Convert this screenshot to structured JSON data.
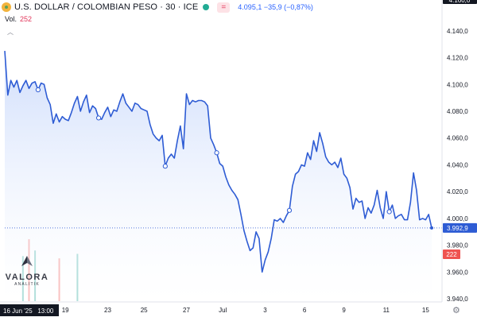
{
  "header": {
    "title": "U.S. DOLLAR / COLOMBIAN PESO · 30 · ICE",
    "mode_button": "=",
    "last_change": "4.095,1  −35,9 (−0,87%)"
  },
  "volume": {
    "label": "Vol.",
    "value": "252"
  },
  "collapse_icon": "chevron-up-icon",
  "logo": {
    "brand": "VALORA",
    "sub": "ANALITIK"
  },
  "badges": {
    "price": "3.992,9",
    "volume": "222",
    "top_partial": "4.160,0",
    "date_badge": "16 Jun '25   13:00"
  },
  "colors": {
    "line": "#2e5cd4",
    "area_top": "#c9d9fb",
    "area_bottom": "#ffffff",
    "volume_up": "#26a69a",
    "volume_down": "#ef5350",
    "price_badge": "#2e5cd4",
    "volume_badge": "#ef5350",
    "date_badge": "#131722"
  },
  "chart_data": {
    "type": "area",
    "title": "U.S. DOLLAR / COLOMBIAN PESO · 30 · ICE",
    "xlabel": "",
    "ylabel": "",
    "x_tick_labels": [
      "19",
      "23",
      "25",
      "27",
      "Jul",
      "3",
      "6",
      "9",
      "11",
      "15"
    ],
    "y_tick_labels": [
      "4.140,0",
      "4.120,0",
      "4.100,0",
      "4.080,0",
      "4.060,0",
      "4.040,0",
      "4.020,0",
      "4.000,0",
      "3.980,0",
      "3.960,0",
      "3.940,0"
    ],
    "y_ticks": [
      4140,
      4120,
      4100,
      4080,
      4060,
      4040,
      4020,
      4000,
      3980,
      3960,
      3940
    ],
    "ylim": [
      3938,
      4163
    ],
    "x_ticks": [
      {
        "label": "19",
        "i": 20
      },
      {
        "label": "23",
        "i": 34
      },
      {
        "label": "25",
        "i": 46
      },
      {
        "label": "27",
        "i": 60
      },
      {
        "label": "Jul",
        "i": 72
      },
      {
        "label": "3",
        "i": 86
      },
      {
        "label": "6",
        "i": 99
      },
      {
        "label": "9",
        "i": 112
      },
      {
        "label": "11",
        "i": 126
      },
      {
        "label": "15",
        "i": 139
      }
    ],
    "n_points": 142,
    "series": [
      {
        "values": [
          4125,
          4092,
          4103,
          4098,
          4103,
          4094,
          4099,
          4103,
          4097,
          4101,
          4102,
          4096,
          4101,
          4100,
          4090,
          4085,
          4071,
          4078,
          4072,
          4076,
          4074,
          4073,
          4079,
          4086,
          4091,
          4080,
          4087,
          4092,
          4079,
          4084,
          4082,
          4075,
          4074,
          4079,
          4083,
          4076,
          4081,
          4080,
          4087,
          4093,
          4086,
          4083,
          4080,
          4086,
          4085,
          4082,
          4081,
          4080,
          4070,
          4063,
          4060,
          4058,
          4062,
          4039,
          4045,
          4048,
          4045,
          4058,
          4069,
          4052,
          4093,
          4085,
          4088,
          4087,
          4088,
          4088,
          4087,
          4084,
          4060,
          4055,
          4049,
          4041,
          4039,
          4031,
          4025,
          4021,
          4018,
          4014,
          4003,
          3991,
          3983,
          3976,
          3978,
          3990,
          3985,
          3960,
          3969,
          3975,
          3985,
          3999,
          3998,
          4000,
          3997,
          4002,
          4006,
          4024,
          4033,
          4035,
          4040,
          4039,
          4049,
          4044,
          4058,
          4050,
          4064,
          4056,
          4046,
          4042,
          4040,
          4042,
          4038,
          4045,
          4033,
          4030,
          4023,
          4007,
          4015,
          4012,
          4013,
          4000,
          4008,
          4004,
          4010,
          4021,
          4008,
          4000,
          4020,
          4005,
          4010,
          4000,
          4002,
          4003,
          3999,
          3999,
          4012,
          4034,
          4021,
          3999,
          4000,
          3999,
          4003,
          3992.9
        ],
        "volumes": [
          0,
          0,
          0,
          0,
          0,
          0,
          40,
          0,
          55,
          0,
          45,
          0,
          0,
          0,
          0,
          0,
          0,
          0,
          38,
          0,
          0,
          0,
          0,
          0,
          42,
          0,
          0,
          0,
          0,
          0,
          0,
          0,
          0,
          0,
          0,
          0,
          0,
          0,
          0,
          0,
          0,
          0,
          0,
          0,
          0,
          0,
          0,
          0,
          0,
          0,
          0,
          0,
          0,
          0,
          0,
          0,
          0,
          0,
          0,
          0,
          0,
          0,
          0,
          0,
          0,
          0,
          0,
          0,
          0,
          0,
          0,
          0,
          0,
          0,
          0,
          0,
          0,
          0,
          0,
          0,
          0,
          0,
          0,
          0,
          0,
          0,
          0,
          0,
          0,
          0,
          0,
          0,
          0,
          0,
          0,
          0,
          0,
          0,
          0,
          0,
          0,
          0,
          0,
          0,
          0,
          0,
          0,
          0,
          0,
          0,
          0,
          0,
          0,
          0,
          0,
          0,
          0,
          0,
          0,
          0,
          0,
          0,
          0,
          0,
          0,
          0,
          0,
          0,
          0,
          0,
          0,
          0,
          0,
          0,
          0,
          0,
          0,
          0,
          0,
          0,
          0,
          0
        ],
        "markers": [
          11,
          31,
          53,
          70,
          94,
          127
        ]
      }
    ],
    "grid": false,
    "last_price": 3992.9
  }
}
